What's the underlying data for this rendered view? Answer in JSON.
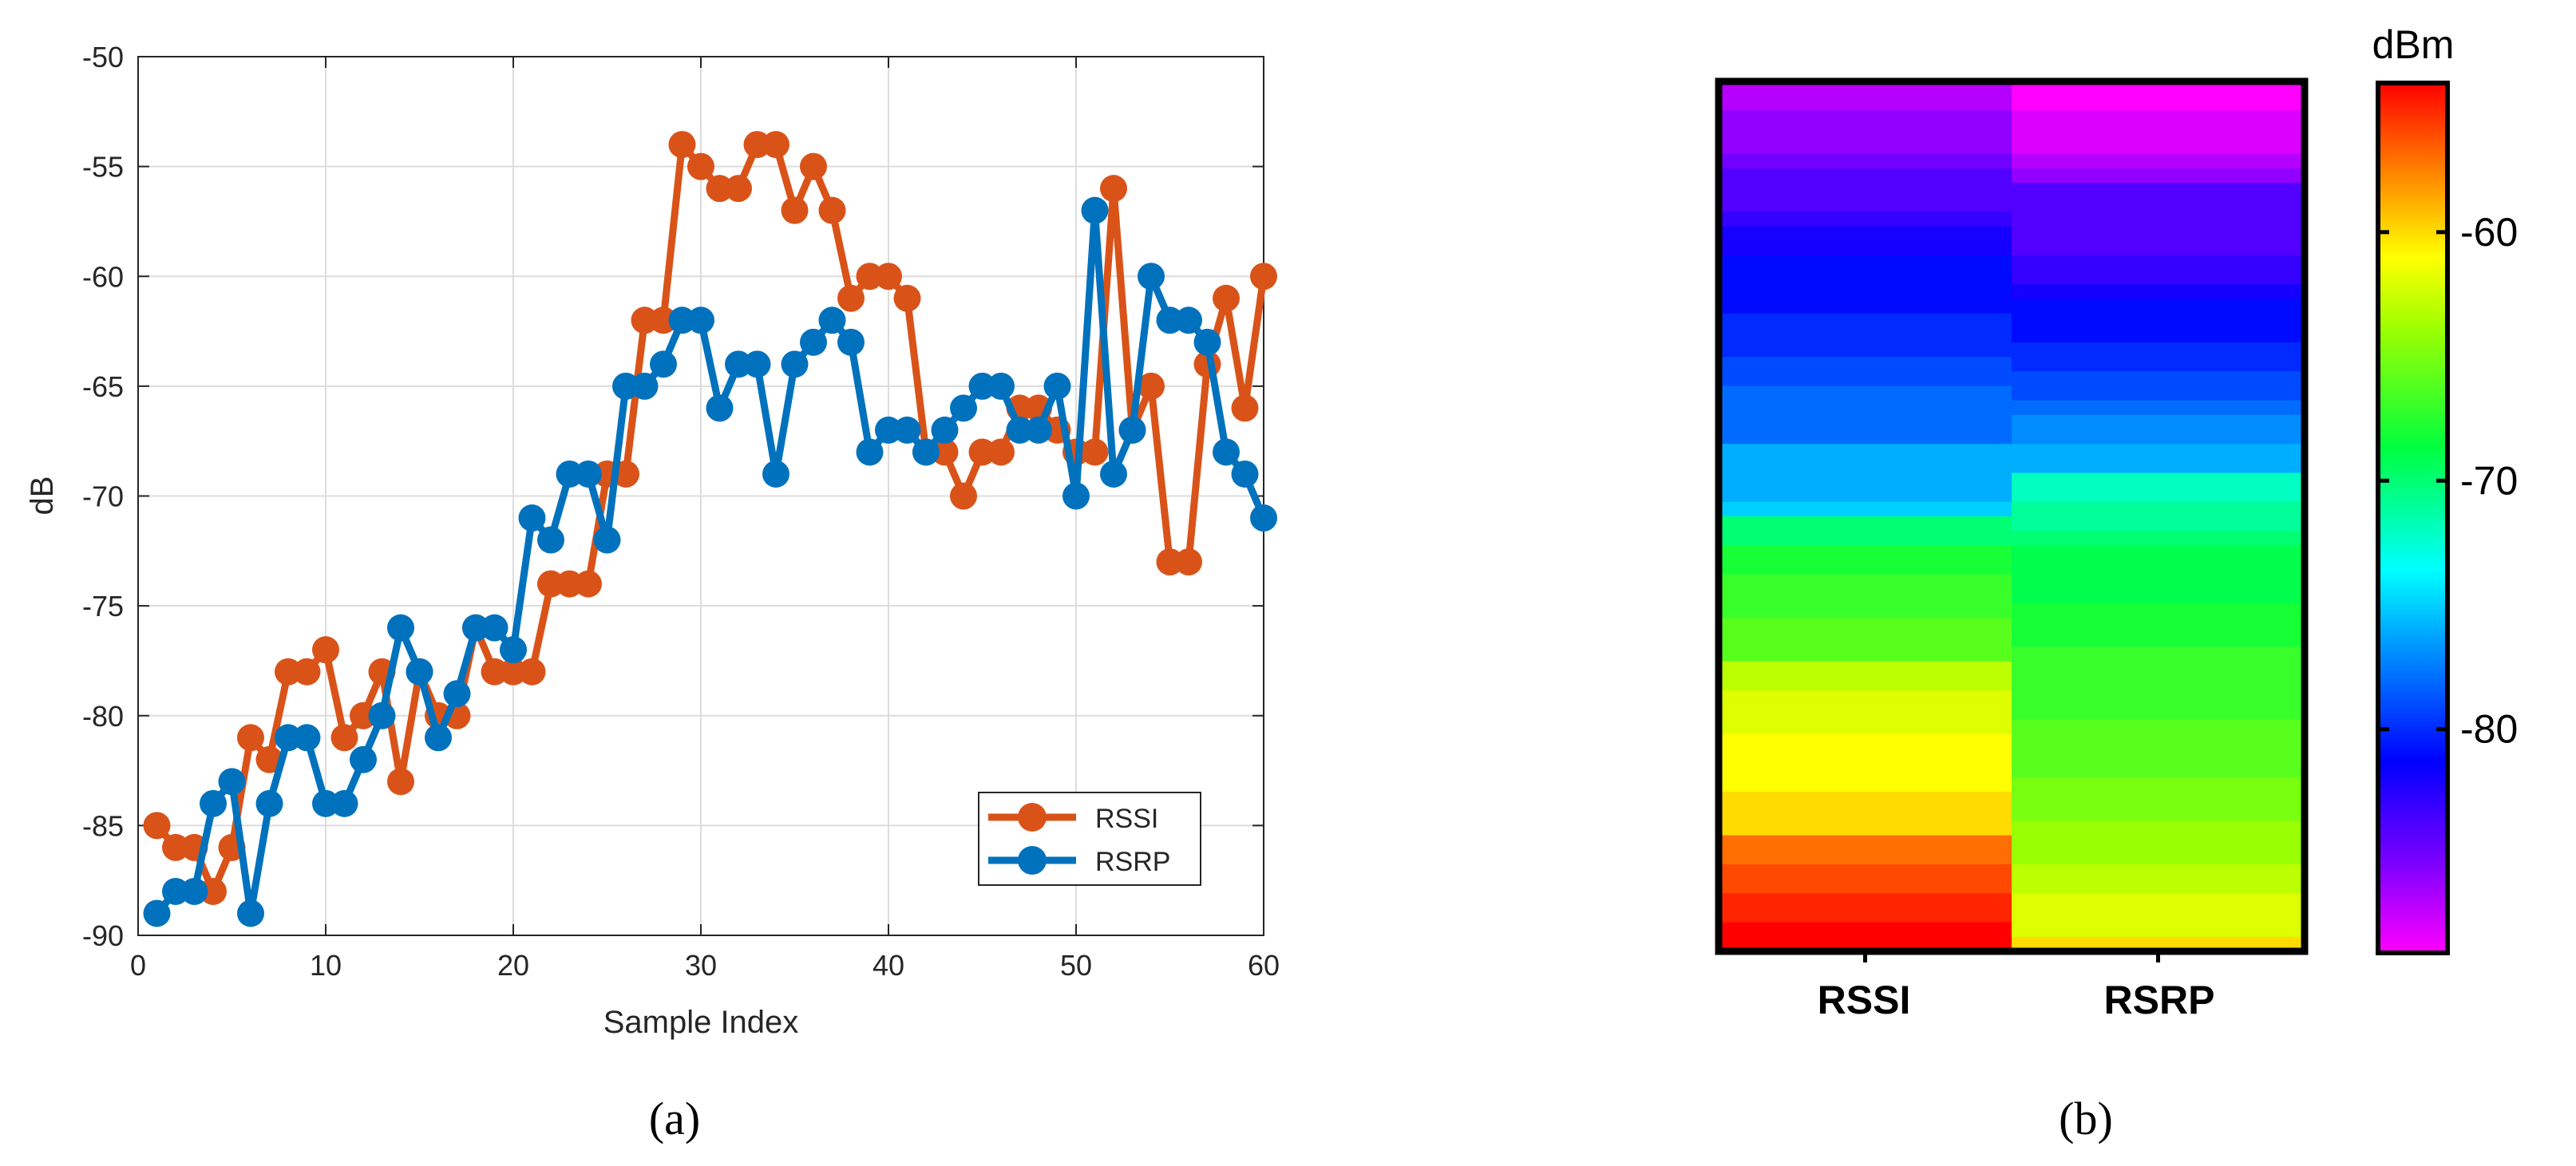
{
  "chart_data": [
    {
      "panel": "a",
      "type": "line",
      "title": "",
      "xlabel": "Sample Index",
      "ylabel": "dB",
      "xlim": [
        0,
        60
      ],
      "ylim": [
        -90,
        -50
      ],
      "xticks": [
        0,
        10,
        20,
        30,
        40,
        50,
        60
      ],
      "yticks": [
        -50,
        -55,
        -60,
        -65,
        -70,
        -75,
        -80,
        -85,
        -90
      ],
      "grid": true,
      "legend_position": "bottom-right",
      "x": [
        1,
        2,
        3,
        4,
        5,
        6,
        7,
        8,
        9,
        10,
        11,
        12,
        13,
        14,
        15,
        16,
        17,
        18,
        19,
        20,
        21,
        22,
        23,
        24,
        25,
        26,
        27,
        28,
        29,
        30,
        31,
        32,
        33,
        34,
        35,
        36,
        37,
        38,
        39,
        40,
        41,
        42,
        43,
        44,
        45,
        46,
        47,
        48,
        49,
        50,
        51,
        52,
        53,
        54,
        55,
        56,
        57,
        58,
        59,
        60
      ],
      "series": [
        {
          "name": "RSSI",
          "color": "#D95319",
          "values": [
            -85,
            -86,
            -86,
            -88,
            -86,
            -81,
            -82,
            -78,
            -78,
            -77,
            -81,
            -80,
            -78,
            -83,
            -78,
            -80,
            -80,
            -76,
            -78,
            -78,
            -78,
            -74,
            -74,
            -74,
            -69,
            -69,
            -62,
            -62,
            -54,
            -55,
            -56,
            -56,
            -54,
            -54,
            -57,
            -55,
            -57,
            -61,
            -60,
            -60,
            -61,
            -68,
            -68,
            -70,
            -68,
            -68,
            -66,
            -66,
            -67,
            -68,
            -68,
            -56,
            -67,
            -65,
            -73,
            -73,
            -64,
            -61,
            -66,
            -60
          ]
        },
        {
          "name": "RSRP",
          "color": "#0072BD",
          "values": [
            -89,
            -88,
            -88,
            -84,
            -83,
            -89,
            -84,
            -81,
            -81,
            -84,
            -84,
            -82,
            -80,
            -76,
            -78,
            -81,
            -79,
            -76,
            -76,
            -77,
            -71,
            -72,
            -69,
            -69,
            -72,
            -65,
            -65,
            -64,
            -62,
            -62,
            -66,
            -64,
            -64,
            -69,
            -64,
            -63,
            -62,
            -63,
            -68,
            -67,
            -67,
            -68,
            -67,
            -66,
            -65,
            -65,
            -67,
            -67,
            -65,
            -70,
            -57,
            -69,
            -67,
            -60,
            -62,
            -62,
            -63,
            -68,
            -69,
            -71
          ]
        }
      ]
    },
    {
      "panel": "b",
      "type": "heatmap",
      "columns": [
        "RSSI",
        "RSRP"
      ],
      "colorbar_label": "dBm",
      "colorbar_range": [
        -89,
        -54
      ],
      "colorbar_ticks": [
        -60,
        -70,
        -80
      ],
      "colormap": "rainbow (magenta low → red high)",
      "rows_top_to_bottom": 60,
      "column_values_top_to_bottom": {
        "RSSI": [
          -87,
          -87,
          -86,
          -86,
          -86,
          -85,
          -84,
          -84,
          -84,
          -83,
          -82,
          -82,
          -81,
          -81,
          -81,
          -81,
          -80,
          -80,
          -80,
          -79,
          -79,
          -78,
          -78,
          -78,
          -78,
          -76,
          -76,
          -76,
          -76,
          -75,
          -70,
          -70,
          -68,
          -68,
          -67,
          -67,
          -67,
          -66,
          -66,
          -66,
          -63,
          -63,
          -62,
          -62,
          -62,
          -61,
          -61,
          -61,
          -61,
          -60,
          -60,
          -60,
          -57,
          -57,
          -56,
          -56,
          -55,
          -55,
          -54,
          -54
        ],
        "RSRP": [
          -89,
          -89,
          -88,
          -88,
          -88,
          -87,
          -86,
          -84,
          -84,
          -84,
          -84,
          -84,
          -83,
          -83,
          -82,
          -81,
          -81,
          -81,
          -80,
          -80,
          -79,
          -79,
          -78,
          -77,
          -77,
          -76,
          -76,
          -72,
          -72,
          -71,
          -71,
          -70,
          -69,
          -69,
          -69,
          -69,
          -68,
          -68,
          -68,
          -67,
          -67,
          -67,
          -67,
          -67,
          -66,
          -66,
          -66,
          -66,
          -65,
          -65,
          -65,
          -64,
          -64,
          -64,
          -63,
          -63,
          -62,
          -62,
          -62,
          -60
        ]
      }
    }
  ],
  "captions": {
    "a": "(a)",
    "b": "(b)"
  }
}
